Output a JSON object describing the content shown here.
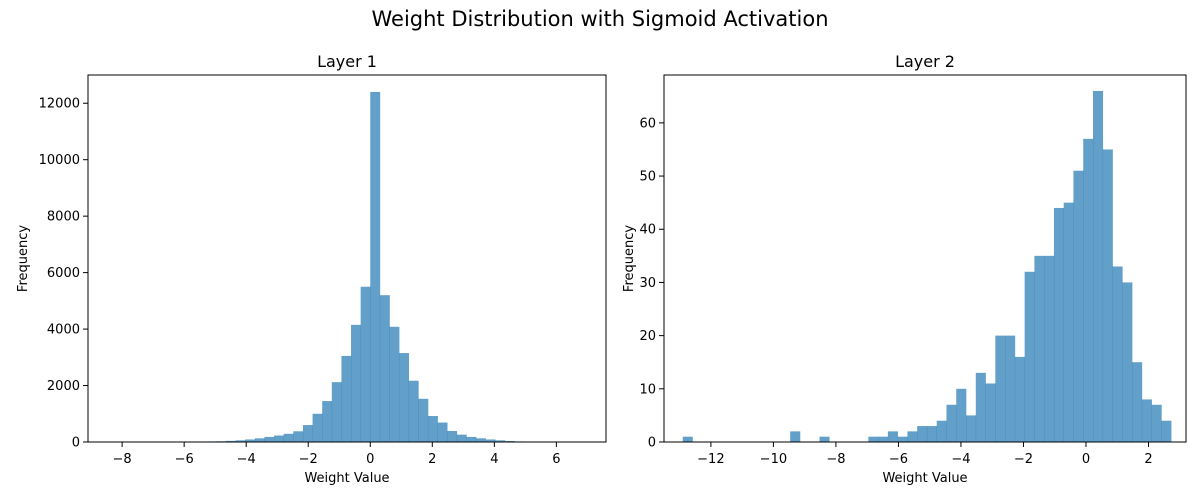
{
  "figure": {
    "title": "Weight Distribution with Sigmoid Activation"
  },
  "chart_data": [
    {
      "type": "bar",
      "histogram": true,
      "title": "Layer 1",
      "xlabel": "Weight Value",
      "ylabel": "Frequency",
      "xlim": [
        -9.1,
        7.6
      ],
      "ylim": [
        0,
        13000
      ],
      "xticks": [
        -8,
        -6,
        -4,
        -2,
        0,
        2,
        4,
        6
      ],
      "yticks": [
        0,
        2000,
        4000,
        6000,
        8000,
        10000,
        12000
      ],
      "bar_color": "#1f77b4",
      "bar_opacity": 0.7,
      "bin_width": 0.31,
      "bins_start": [
        -6.2,
        -5.89,
        -5.58,
        -5.27,
        -4.96,
        -4.65,
        -4.34,
        -4.03,
        -3.72,
        -3.41,
        -3.1,
        -2.79,
        -2.48,
        -2.17,
        -1.86,
        -1.55,
        -1.24,
        -0.93,
        -0.62,
        -0.31,
        0.0,
        0.31,
        0.62,
        0.93,
        1.24,
        1.55,
        1.86,
        2.17,
        2.48,
        2.79,
        3.1,
        3.41,
        3.72,
        4.03,
        4.34,
        4.65,
        4.96
      ],
      "values": [
        8,
        12,
        15,
        20,
        25,
        40,
        60,
        90,
        130,
        180,
        230,
        290,
        380,
        600,
        1000,
        1450,
        2120,
        3050,
        4150,
        5500,
        12400,
        5200,
        4080,
        3150,
        2170,
        1530,
        920,
        690,
        390,
        260,
        180,
        130,
        90,
        60,
        35,
        20,
        10
      ]
    },
    {
      "type": "bar",
      "histogram": true,
      "title": "Layer 2",
      "xlabel": "Weight Value",
      "ylabel": "Frequency",
      "xlim": [
        -13.5,
        3.2
      ],
      "ylim": [
        0,
        69
      ],
      "xticks": [
        -12,
        -10,
        -8,
        -6,
        -4,
        -2,
        0,
        2
      ],
      "yticks": [
        0,
        10,
        20,
        30,
        40,
        50,
        60
      ],
      "bar_color": "#1f77b4",
      "bar_opacity": 0.7,
      "bin_width": 0.3125,
      "bins_start": [
        -12.9,
        -12.5875,
        -12.275,
        -11.9625,
        -11.65,
        -11.3375,
        -11.025,
        -10.7125,
        -10.4,
        -10.0875,
        -9.775,
        -9.4625,
        -9.15,
        -8.8375,
        -8.525,
        -8.2125,
        -7.9,
        -7.5875,
        -7.275,
        -6.9625,
        -6.65,
        -6.3375,
        -6.025,
        -5.7125,
        -5.4,
        -5.0875,
        -4.775,
        -4.4625,
        -4.15,
        -3.8375,
        -3.525,
        -3.2125,
        -2.9,
        -2.5875,
        -2.275,
        -1.9625,
        -1.65,
        -1.3375,
        -1.025,
        -0.7125,
        -0.4,
        -0.0875,
        0.225,
        0.5375,
        0.85,
        1.1625,
        1.475,
        1.7875,
        2.1,
        2.4125
      ],
      "values": [
        1,
        0,
        0,
        0,
        0,
        0,
        0,
        0,
        0,
        0,
        0,
        2,
        0,
        0,
        1,
        0,
        0,
        0,
        0,
        1,
        1,
        2,
        1,
        2,
        3,
        3,
        4,
        7,
        10,
        5,
        13,
        11,
        20,
        20,
        16,
        32,
        35,
        35,
        44,
        45,
        51,
        57,
        66,
        55,
        33,
        30,
        15,
        8,
        7,
        4
      ]
    }
  ]
}
